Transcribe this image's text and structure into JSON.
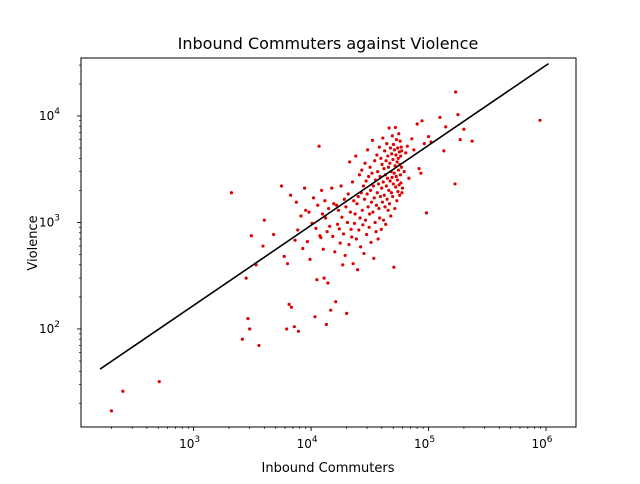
{
  "chart_data": {
    "type": "scatter",
    "title": "Inbound Commuters against Violence",
    "xlabel": "Inbound Commuters",
    "ylabel": "Violence",
    "xscale": "log",
    "yscale": "log",
    "xlim": [
      110,
      1800000
    ],
    "ylim": [
      12,
      35000
    ],
    "grid": false,
    "x_ticks": [
      {
        "value": 1000,
        "base": "10",
        "exp": "3"
      },
      {
        "value": 10000,
        "base": "10",
        "exp": "4"
      },
      {
        "value": 100000,
        "base": "10",
        "exp": "5"
      },
      {
        "value": 1000000,
        "base": "10",
        "exp": "6"
      }
    ],
    "y_ticks": [
      {
        "value": 100,
        "base": "10",
        "exp": "2"
      },
      {
        "value": 1000,
        "base": "10",
        "exp": "3"
      },
      {
        "value": 10000,
        "base": "10",
        "exp": "4"
      }
    ],
    "colors": {
      "points": "#e00000",
      "fit_line": "#000000"
    },
    "fit_line": {
      "x": [
        160,
        1050000
      ],
      "y": [
        42,
        31000
      ]
    },
    "points": [
      [
        200,
        17
      ],
      [
        250,
        26
      ],
      [
        510,
        32
      ],
      [
        2100,
        1900
      ],
      [
        2600,
        80
      ],
      [
        2800,
        300
      ],
      [
        2900,
        125
      ],
      [
        3000,
        100
      ],
      [
        3100,
        750
      ],
      [
        3400,
        400
      ],
      [
        3600,
        70
      ],
      [
        3900,
        600
      ],
      [
        4000,
        1050
      ],
      [
        4800,
        770
      ],
      [
        5600,
        2200
      ],
      [
        5900,
        480
      ],
      [
        6200,
        100
      ],
      [
        6300,
        410
      ],
      [
        6500,
        170
      ],
      [
        6700,
        1800
      ],
      [
        6800,
        160
      ],
      [
        7200,
        105
      ],
      [
        7300,
        680
      ],
      [
        7500,
        1550
      ],
      [
        7700,
        850
      ],
      [
        7800,
        95
      ],
      [
        8200,
        1150
      ],
      [
        8500,
        570
      ],
      [
        8800,
        2100
      ],
      [
        9000,
        1300
      ],
      [
        9300,
        660
      ],
      [
        9600,
        1250
      ],
      [
        9800,
        450
      ],
      [
        10200,
        980
      ],
      [
        10500,
        1700
      ],
      [
        10800,
        130
      ],
      [
        11000,
        880
      ],
      [
        11200,
        290
      ],
      [
        11400,
        1450
      ],
      [
        11700,
        5200
      ],
      [
        11900,
        750
      ],
      [
        12100,
        720
      ],
      [
        12300,
        2000
      ],
      [
        12500,
        1200
      ],
      [
        12700,
        560
      ],
      [
        12900,
        300
      ],
      [
        13100,
        1600
      ],
      [
        13300,
        1100
      ],
      [
        13500,
        110
      ],
      [
        13700,
        820
      ],
      [
        13900,
        270
      ],
      [
        14100,
        1350
      ],
      [
        14400,
        920
      ],
      [
        14700,
        150
      ],
      [
        15000,
        2100
      ],
      [
        15300,
        740
      ],
      [
        15600,
        1500
      ],
      [
        15900,
        530
      ],
      [
        16200,
        180
      ],
      [
        16500,
        1450
      ],
      [
        16800,
        960
      ],
      [
        17100,
        1300
      ],
      [
        17400,
        870
      ],
      [
        17700,
        640
      ],
      [
        18000,
        2200
      ],
      [
        18300,
        1120
      ],
      [
        18600,
        400
      ],
      [
        18900,
        780
      ],
      [
        19200,
        1650
      ],
      [
        19500,
        490
      ],
      [
        19800,
        1400
      ],
      [
        20100,
        140
      ],
      [
        20400,
        1000
      ],
      [
        20700,
        1850
      ],
      [
        21000,
        620
      ],
      [
        21300,
        3700
      ],
      [
        21600,
        1250
      ],
      [
        21900,
        860
      ],
      [
        22200,
        730
      ],
      [
        22500,
        2400
      ],
      [
        22800,
        410
      ],
      [
        23100,
        1600
      ],
      [
        23400,
        980
      ],
      [
        23700,
        1200
      ],
      [
        24000,
        4200
      ],
      [
        24300,
        700
      ],
      [
        24600,
        1500
      ],
      [
        24900,
        360
      ],
      [
        25200,
        1750
      ],
      [
        25500,
        850
      ],
      [
        25800,
        2800
      ],
      [
        26100,
        1100
      ],
      [
        26400,
        590
      ],
      [
        26700,
        1900
      ],
      [
        27000,
        3100
      ],
      [
        27300,
        1300
      ],
      [
        27600,
        950
      ],
      [
        27900,
        2200
      ],
      [
        28200,
        510
      ],
      [
        28500,
        1650
      ],
      [
        28800,
        3600
      ],
      [
        29100,
        1050
      ],
      [
        29400,
        2450
      ],
      [
        29700,
        770
      ],
      [
        30000,
        1850
      ],
      [
        30300,
        4800
      ],
      [
        30600,
        1400
      ],
      [
        30900,
        2700
      ],
      [
        31200,
        900
      ],
      [
        31500,
        1200
      ],
      [
        31800,
        3300
      ],
      [
        32100,
        2000
      ],
      [
        32400,
        650
      ],
      [
        32700,
        1550
      ],
      [
        33000,
        2900
      ],
      [
        33300,
        5900
      ],
      [
        33600,
        1250
      ],
      [
        33900,
        2200
      ],
      [
        34200,
        460
      ],
      [
        34500,
        1700
      ],
      [
        34800,
        3800
      ],
      [
        35100,
        1000
      ],
      [
        35400,
        2500
      ],
      [
        35700,
        820
      ],
      [
        36000,
        1450
      ],
      [
        36300,
        4300
      ],
      [
        36600,
        1900
      ],
      [
        36900,
        3000
      ],
      [
        37200,
        700
      ],
      [
        37500,
        2300
      ],
      [
        37800,
        1350
      ],
      [
        38100,
        5100
      ],
      [
        38400,
        1100
      ],
      [
        38700,
        2700
      ],
      [
        39000,
        1750
      ],
      [
        39300,
        4000
      ],
      [
        39600,
        860
      ],
      [
        39900,
        2100
      ],
      [
        40200,
        3500
      ],
      [
        40500,
        1550
      ],
      [
        40800,
        6200
      ],
      [
        41100,
        2400
      ],
      [
        41400,
        1050
      ],
      [
        41700,
        3200
      ],
      [
        42000,
        1800
      ],
      [
        42300,
        4700
      ],
      [
        42600,
        1400
      ],
      [
        42900,
        2800
      ],
      [
        43200,
        960
      ],
      [
        43500,
        3800
      ],
      [
        43800,
        2200
      ],
      [
        44100,
        5500
      ],
      [
        44400,
        1650
      ],
      [
        44700,
        2600
      ],
      [
        45000,
        4200
      ],
      [
        45300,
        1300
      ],
      [
        45600,
        3300
      ],
      [
        45900,
        2000
      ],
      [
        46200,
        7700
      ],
      [
        46500,
        1500
      ],
      [
        46800,
        3600
      ],
      [
        47100,
        2450
      ],
      [
        47400,
        5000
      ],
      [
        47700,
        1150
      ],
      [
        48000,
        3000
      ],
      [
        48300,
        1900
      ],
      [
        48600,
        4400
      ],
      [
        48900,
        2650
      ],
      [
        49200,
        6500
      ],
      [
        49500,
        1750
      ],
      [
        49800,
        3900
      ],
      [
        50100,
        2300
      ],
      [
        50400,
        5400
      ],
      [
        50700,
        380
      ],
      [
        51000,
        2900
      ],
      [
        51300,
        4800
      ],
      [
        51600,
        1350
      ],
      [
        51900,
        3400
      ],
      [
        52200,
        7800
      ],
      [
        52500,
        2150
      ],
      [
        52800,
        4300
      ],
      [
        53100,
        2700
      ],
      [
        53400,
        6000
      ],
      [
        53700,
        1600
      ],
      [
        54000,
        3700
      ],
      [
        54300,
        2500
      ],
      [
        54600,
        5000
      ],
      [
        54900,
        1950
      ],
      [
        55200,
        4000
      ],
      [
        55500,
        3100
      ],
      [
        55800,
        6800
      ],
      [
        56100,
        2250
      ],
      [
        56400,
        4600
      ],
      [
        56700,
        1800
      ],
      [
        57000,
        3500
      ],
      [
        57300,
        5800
      ],
      [
        57600,
        2800
      ],
      [
        57900,
        4200
      ],
      [
        58200,
        2350
      ],
      [
        58500,
        5100
      ],
      [
        58800,
        3300
      ],
      [
        59100,
        4700
      ],
      [
        59400,
        1900
      ],
      [
        60000,
        2100
      ],
      [
        62000,
        3000
      ],
      [
        64000,
        4500
      ],
      [
        66000,
        5200
      ],
      [
        68000,
        2600
      ],
      [
        72000,
        6100
      ],
      [
        75000,
        4800
      ],
      [
        80000,
        8400
      ],
      [
        83000,
        3200
      ],
      [
        86000,
        2900
      ],
      [
        88000,
        9000
      ],
      [
        92000,
        5500
      ],
      [
        96000,
        1230
      ],
      [
        100000,
        6400
      ],
      [
        105000,
        5700
      ],
      [
        125000,
        9700
      ],
      [
        135000,
        4700
      ],
      [
        140000,
        7900
      ],
      [
        168000,
        2300
      ],
      [
        170000,
        16800
      ],
      [
        178000,
        10300
      ],
      [
        186000,
        6000
      ],
      [
        200000,
        7500
      ],
      [
        235000,
        5800
      ],
      [
        890000,
        9100
      ]
    ]
  }
}
